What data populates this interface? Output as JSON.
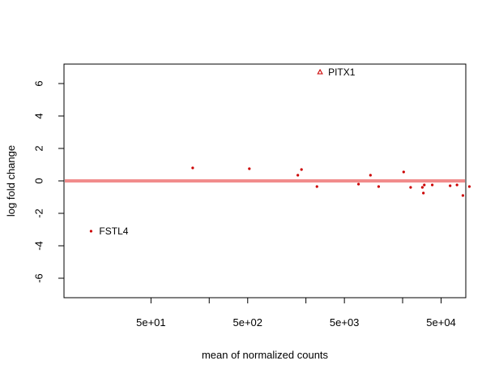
{
  "chart_data": {
    "type": "scatter",
    "xlabel": "mean of normalized counts",
    "ylabel": "log fold change",
    "x_scale": "log",
    "xlim": [
      6.3,
      90000
    ],
    "ylim": [
      -7.2,
      7.2
    ],
    "x_ticks": [
      {
        "value": 50,
        "label": "5e+01"
      },
      {
        "value": 500,
        "label": "5e+02"
      },
      {
        "value": 5000,
        "label": "5e+03"
      },
      {
        "value": 50000,
        "label": "5e+04"
      }
    ],
    "x_minor_ticks": [
      {
        "value": 200,
        "label": ""
      },
      {
        "value": 2000,
        "label": ""
      },
      {
        "value": 20000,
        "label": ""
      }
    ],
    "y_ticks": [
      {
        "value": -6,
        "label": "-6"
      },
      {
        "value": -4,
        "label": "-4"
      },
      {
        "value": -2,
        "label": "-2"
      },
      {
        "value": 0,
        "label": "0"
      },
      {
        "value": 2,
        "label": "2"
      },
      {
        "value": 4,
        "label": "4"
      },
      {
        "value": 6,
        "label": "6"
      }
    ],
    "reference_line": {
      "y": 0,
      "color": "#f08080"
    },
    "point_color": "#cc0000",
    "points": [
      {
        "x": 12,
        "y": -3.1,
        "label": "FSTL4"
      },
      {
        "x": 135,
        "y": 0.8
      },
      {
        "x": 520,
        "y": 0.75
      },
      {
        "x": 1650,
        "y": 0.35
      },
      {
        "x": 1800,
        "y": 0.7
      },
      {
        "x": 2600,
        "y": -0.35
      },
      {
        "x": 7000,
        "y": -0.2
      },
      {
        "x": 9300,
        "y": 0.35
      },
      {
        "x": 11300,
        "y": -0.35
      },
      {
        "x": 20500,
        "y": 0.55
      },
      {
        "x": 24200,
        "y": -0.4
      },
      {
        "x": 32000,
        "y": -0.4
      },
      {
        "x": 33500,
        "y": -0.25
      },
      {
        "x": 32800,
        "y": -0.75
      },
      {
        "x": 40500,
        "y": -0.25
      },
      {
        "x": 62000,
        "y": -0.3
      },
      {
        "x": 73000,
        "y": -0.25
      },
      {
        "x": 84000,
        "y": -0.9
      },
      {
        "x": 98000,
        "y": -0.35
      }
    ],
    "highlight_points": [
      {
        "x": 2800,
        "y": 6.7,
        "label": "PITX1",
        "shape": "triangle"
      }
    ],
    "grid": false,
    "legend": "none"
  }
}
